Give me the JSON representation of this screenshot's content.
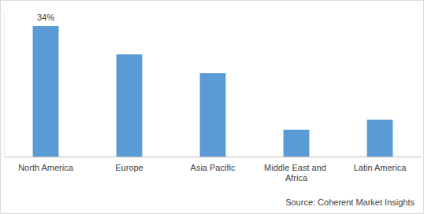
{
  "chart_data": {
    "type": "bar",
    "categories": [
      "North America",
      "Europe",
      "Asia Pacific",
      "Middle East and Africa",
      "Latin America"
    ],
    "values": [
      34,
      26.6,
      21.7,
      7,
      9.6
    ],
    "value_labels": [
      "34%",
      null,
      null,
      null,
      null
    ],
    "data_labels": true,
    "color": "#5b9bd5",
    "ylim": [
      0,
      38
    ],
    "tick_labels": "x",
    "grid": false,
    "source": "Source: Coherent Market Insights"
  }
}
